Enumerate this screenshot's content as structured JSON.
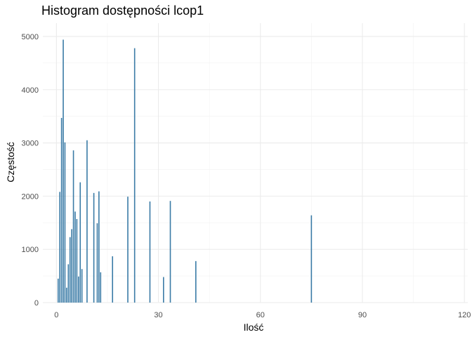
{
  "chart_data": {
    "type": "bar",
    "title": "Histogram dostępności lcop1",
    "xlabel": "Ilość",
    "ylabel": "Częstość",
    "xlim": [
      -4,
      121
    ],
    "ylim": [
      0,
      5250
    ],
    "xticks": [
      0,
      30,
      60,
      90,
      120
    ],
    "yticks": [
      0,
      1000,
      2000,
      3000,
      4000,
      5000
    ],
    "grid": true,
    "bar_color": "#3a7ba6",
    "x": [
      0.5,
      1.0,
      1.5,
      2.0,
      2.5,
      3.0,
      3.5,
      4.0,
      4.5,
      5.0,
      5.5,
      6.0,
      6.5,
      7.0,
      7.5,
      9.0,
      11.0,
      12.0,
      12.5,
      13.0,
      16.5,
      21.0,
      23.0,
      27.5,
      31.5,
      33.5,
      41.0,
      75.0
    ],
    "values": [
      450,
      2080,
      3470,
      4940,
      3010,
      280,
      720,
      1230,
      1380,
      2860,
      1710,
      1570,
      490,
      2260,
      630,
      3050,
      2060,
      1490,
      2090,
      570,
      870,
      1990,
      4780,
      1900,
      480,
      1910,
      780,
      1640
    ]
  }
}
